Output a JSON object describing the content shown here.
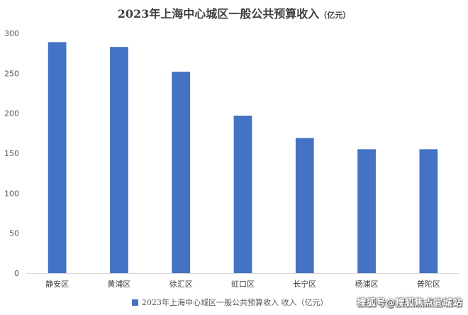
{
  "chart_data": {
    "type": "bar",
    "title": "2023年上海中心城区一般公共预算收入",
    "title_unit": "（亿元）",
    "categories": [
      "静安区",
      "黄浦区",
      "徐汇区",
      "虹口区",
      "长宁区",
      "杨浦区",
      "普陀区"
    ],
    "series": [
      {
        "name": "2023年上海中心城区一般公共预算收入 收入（亿元）",
        "values": [
          289,
          283,
          252,
          197,
          169,
          155,
          155
        ],
        "color": "#4472c4"
      }
    ],
    "yticks": [
      0,
      50,
      100,
      150,
      200,
      250,
      300
    ],
    "ylim": [
      0,
      300
    ],
    "grid": false,
    "legend": "bottom"
  },
  "watermark": "搜狐号@搜狐焦点宜城站"
}
